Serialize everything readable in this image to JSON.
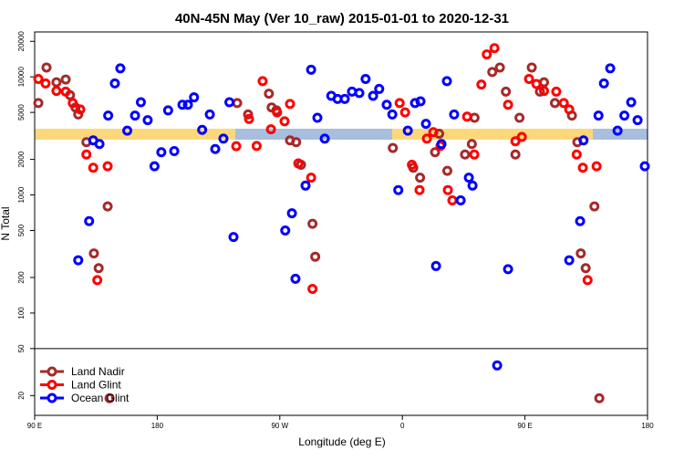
{
  "chart_data": {
    "type": "scatter",
    "title": "40N-45N May (Ver 10_raw)   2015-01-01 to 2020-12-31",
    "x_label": "Longitude (deg E)",
    "y_label": "N Total",
    "log_y": true,
    "legend": "lower left",
    "break_at": 50,
    "xlim": [
      90,
      540
    ],
    "xticks": [
      {
        "value": 90,
        "label": "90 E"
      },
      180,
      {
        "value": 270,
        "label": "90 W"
      },
      {
        "value": 360,
        "label": "0"
      },
      {
        "value": 450,
        "label": "90 E"
      },
      {
        "value": 540,
        "label": "180"
      }
    ],
    "ylim": [
      13.6,
      24000
    ],
    "yticks": [
      20,
      50,
      100,
      200,
      500,
      1000,
      2000,
      5000,
      10000,
      20000
    ],
    "series": [
      {
        "name": "Land Nadir",
        "color": "#a52a2a",
        "x": [
          92.7,
          98.7,
          106,
          112.8,
          116,
          120,
          122,
          128,
          133.5,
          137,
          143.6,
          145,
          238.7,
          246.7,
          262,
          264,
          267.5,
          277.5,
          282,
          285.6,
          294,
          296,
          353,
          368,
          373,
          384,
          387,
          393,
          406,
          411,
          413,
          426,
          431.6,
          436,
          443,
          446,
          455,
          461,
          464,
          472,
          484.5,
          488.5,
          491,
          494.6,
          501,
          504.6
        ],
        "values": [
          6000,
          12000,
          9000,
          9500,
          7000,
          5500,
          4800,
          2800,
          320,
          240,
          800,
          19,
          6000,
          4800,
          7200,
          5500,
          5200,
          2900,
          2800,
          1800,
          570,
          300,
          2500,
          1700,
          1400,
          2300,
          3300,
          1600,
          2200,
          2700,
          4500,
          11000,
          12000,
          7500,
          2200,
          4500,
          12000,
          7500,
          9000,
          6000,
          4700,
          2800,
          320,
          240,
          800,
          19
        ]
      },
      {
        "name": "Land Glint",
        "color": "#ff0000",
        "x": [
          92.7,
          98,
          106,
          112.8,
          118,
          123.5,
          128,
          133,
          136,
          143.6,
          238,
          247.4,
          253,
          257.4,
          263.5,
          268,
          273.5,
          277.5,
          283.6,
          293,
          294,
          358,
          362,
          367,
          372.6,
          378,
          382.7,
          388,
          393.4,
          396.7,
          407.5,
          412.8,
          418,
          422,
          427.6,
          437.6,
          443,
          447.7,
          453,
          458.4,
          464,
          473,
          478.5,
          482.5,
          488,
          492.5,
          496,
          502.6
        ],
        "values": [
          9600,
          8800,
          7600,
          7500,
          6000,
          5300,
          2200,
          1700,
          190,
          1750,
          2590,
          4400,
          2600,
          9200,
          3600,
          5000,
          4200,
          5900,
          1850,
          1400,
          160,
          6000,
          5000,
          1800,
          1100,
          3000,
          3400,
          2600,
          1100,
          900,
          4600,
          2200,
          8600,
          15500,
          17500,
          5800,
          2850,
          3100,
          9600,
          8700,
          7600,
          7500,
          6000,
          5300,
          2200,
          1700,
          190,
          1750
        ]
      },
      {
        "name": "Ocean Glint",
        "color": "#0000ff",
        "x": [
          122,
          130,
          133,
          137.6,
          144,
          148.9,
          152.9,
          158,
          163.7,
          168,
          173,
          178,
          183,
          188,
          192.5,
          198.5,
          202.5,
          207,
          213,
          218.6,
          222.6,
          228.6,
          233,
          236,
          274,
          278.9,
          281.5,
          288.9,
          293,
          297.6,
          303,
          307.8,
          312.4,
          317.7,
          323,
          328.4,
          333,
          338.5,
          343,
          348.5,
          352.6,
          357,
          364,
          369.3,
          373.3,
          377.3,
          384.7,
          388.7,
          392.7,
          398,
          402.8,
          408.8,
          411.5,
          429.6,
          437.6,
          482.5,
          490.5,
          493,
          504,
          508,
          512.6,
          518,
          523,
          528,
          532.7,
          538
        ],
        "values": [
          280,
          600,
          2900,
          2700,
          4700,
          8800,
          11800,
          3500,
          4700,
          6100,
          4300,
          1750,
          2300,
          5200,
          2350,
          5800,
          5800,
          6700,
          3560,
          4800,
          2450,
          3000,
          6100,
          440,
          500,
          700,
          195,
          1200,
          11500,
          4500,
          3000,
          6900,
          6500,
          6500,
          7500,
          7300,
          9600,
          6900,
          7900,
          5800,
          4800,
          1100,
          3500,
          6000,
          6200,
          4000,
          250,
          2700,
          9200,
          4800,
          900,
          1400,
          1200,
          36,
          235,
          280,
          600,
          2900,
          4700,
          8800,
          11800,
          3500,
          4700,
          6100,
          4300,
          1750
        ]
      }
    ]
  }
}
